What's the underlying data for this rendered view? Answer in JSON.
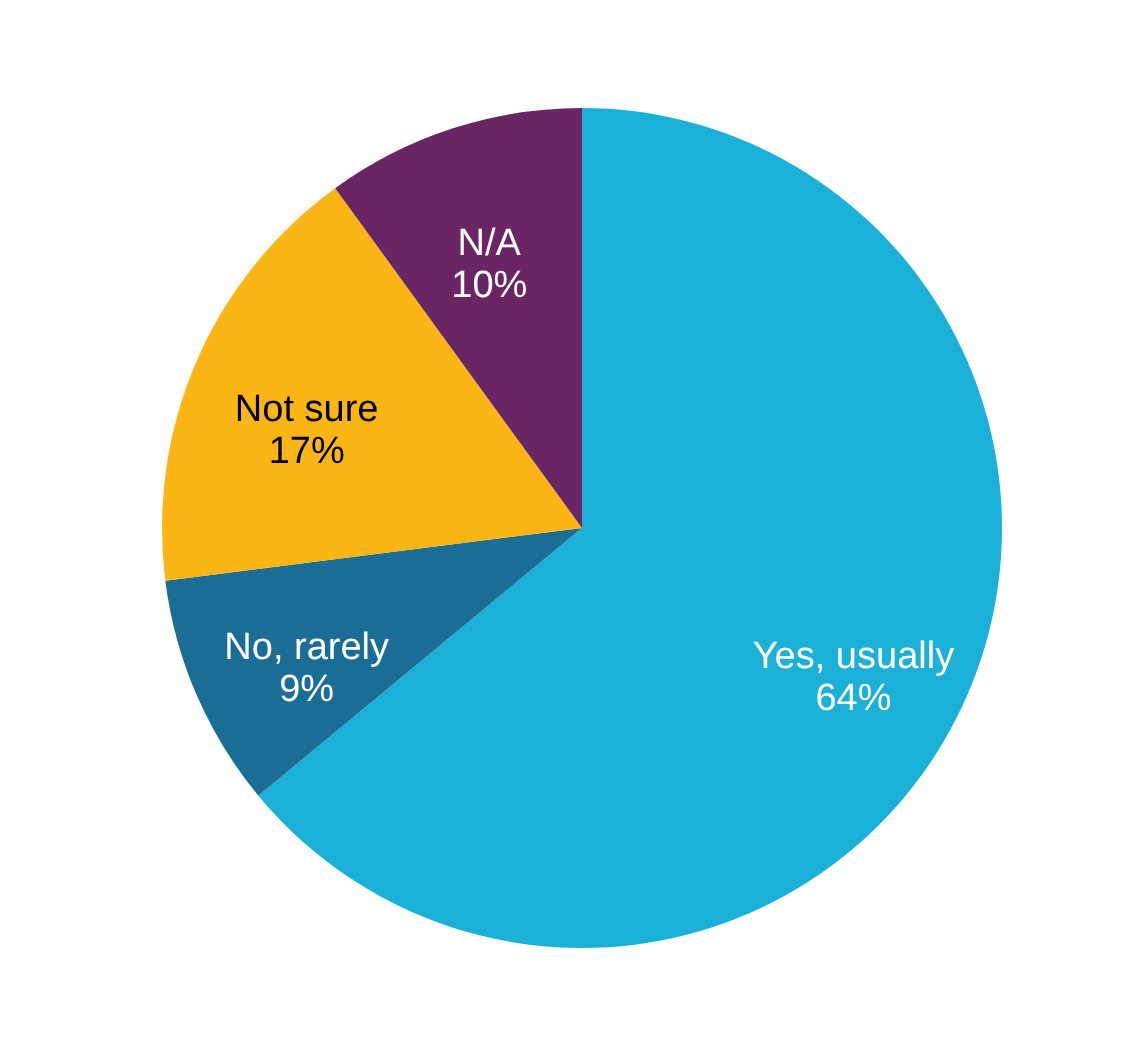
{
  "chart_data": {
    "type": "pie",
    "categories": [
      "Yes, usually",
      "No, rarely",
      "Not sure",
      "N/A"
    ],
    "values": [
      64,
      9,
      17,
      10
    ],
    "colors": [
      "#1ab0d8",
      "#1a6e96",
      "#fbb616",
      "#6a2565"
    ],
    "value_labels": [
      "64%",
      "9%",
      "17%",
      "10%"
    ],
    "legend": false
  }
}
